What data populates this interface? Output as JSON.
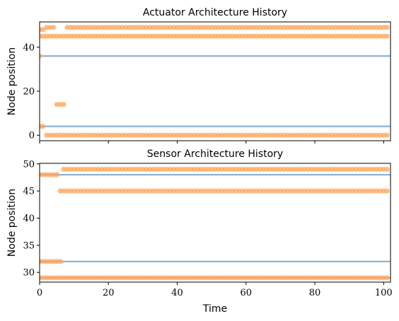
{
  "chart_data": [
    {
      "type": "scatter",
      "title": "Actuator Architecture History",
      "xlabel": "",
      "ylabel": "Node position",
      "xlim": [
        0,
        102
      ],
      "ylim": [
        -2.5,
        51.5
      ],
      "yticks": [
        0,
        20,
        40
      ],
      "xticks": [
        0,
        20,
        40,
        60,
        80,
        100
      ],
      "show_x_tick_labels": false,
      "grid": false,
      "colors": {
        "line": "#8db5d5",
        "marker": "#ffa65a"
      },
      "reference_lines": [
        4,
        36
      ],
      "series": [
        {
          "y": 0,
          "x_ranges": [
            [
              2,
              101
            ]
          ],
          "x_points": []
        },
        {
          "y": 4,
          "x_ranges": [],
          "x_points": [
            0,
            1
          ]
        },
        {
          "y": 14,
          "x_ranges": [
            [
              5,
              7
            ]
          ],
          "x_points": []
        },
        {
          "y": 36,
          "x_ranges": [],
          "x_points": [
            0
          ]
        },
        {
          "y": 45,
          "x_ranges": [
            [
              0,
              101
            ]
          ],
          "x_points": []
        },
        {
          "y": 48,
          "x_ranges": [],
          "x_points": [
            0,
            1
          ]
        },
        {
          "y": 49,
          "x_ranges": [
            [
              8,
              101
            ]
          ],
          "x_points": [
            2,
            3,
            4
          ]
        }
      ]
    },
    {
      "type": "scatter",
      "title": "Sensor Architecture History",
      "xlabel": "Time",
      "ylabel": "Node position",
      "xlim": [
        0,
        102
      ],
      "ylim": [
        28.2,
        50.1
      ],
      "yticks": [
        30,
        35,
        40,
        45,
        50
      ],
      "xticks": [
        0,
        20,
        40,
        60,
        80,
        100
      ],
      "xtick_labels": [
        "0",
        "20",
        "40",
        "60",
        "80",
        "100"
      ],
      "show_x_tick_labels": true,
      "grid": false,
      "colors": {
        "line": "#8db5d5",
        "marker": "#ffa65a"
      },
      "reference_lines": [
        29,
        32,
        48
      ],
      "series": [
        {
          "y": 29,
          "x_ranges": [
            [
              0,
              101
            ]
          ],
          "x_points": []
        },
        {
          "y": 32,
          "x_ranges": [
            [
              0,
              6
            ]
          ],
          "x_points": []
        },
        {
          "y": 45,
          "x_ranges": [
            [
              6,
              101
            ]
          ],
          "x_points": []
        },
        {
          "y": 48,
          "x_ranges": [
            [
              0,
              5
            ]
          ],
          "x_points": []
        },
        {
          "y": 49,
          "x_ranges": [
            [
              7,
              101
            ]
          ],
          "x_points": []
        }
      ]
    }
  ]
}
